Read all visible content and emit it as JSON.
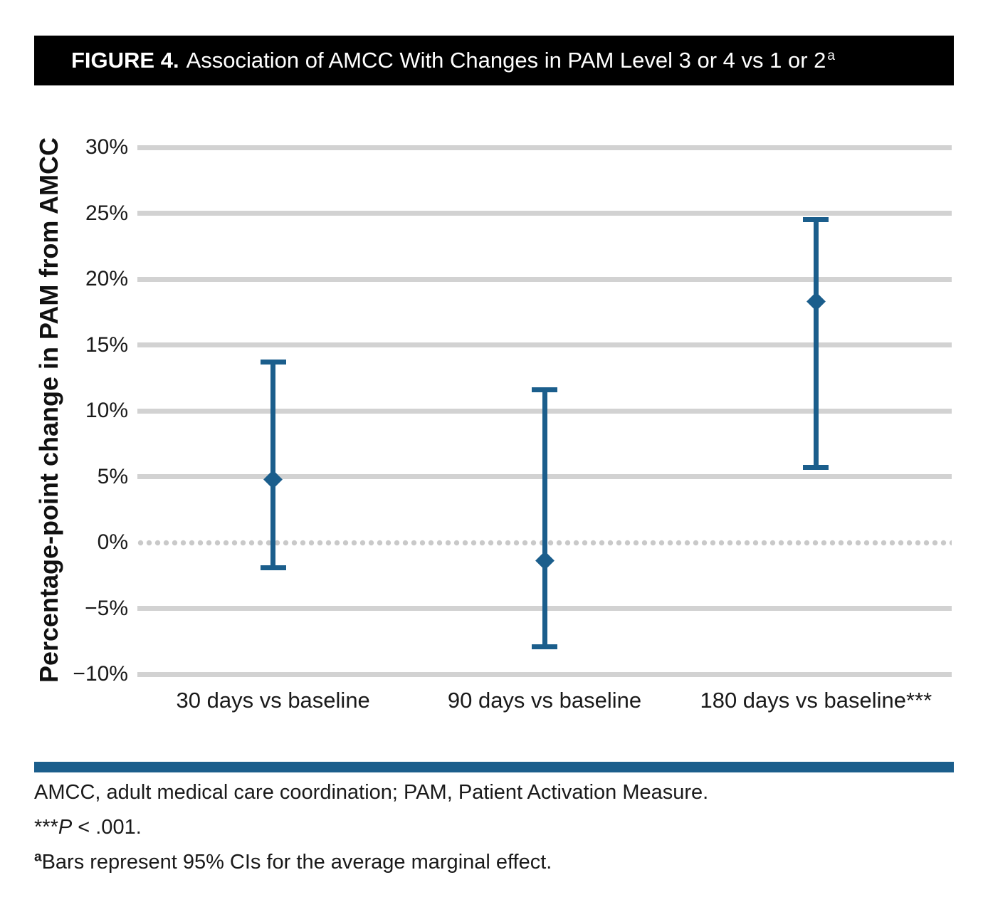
{
  "header": {
    "label": "FIGURE 4.",
    "title": "Association of AMCC With Changes in PAM Level 3 or 4 vs 1 or 2",
    "superscript": "a"
  },
  "chart_data": {
    "type": "scatter",
    "subtype": "point-estimate-with-error-bars",
    "title": "Association of AMCC With Changes in PAM Level 3 or 4 vs 1 or 2",
    "xlabel": "",
    "ylabel": "Percentage-point change in PAM from AMCC",
    "ylim": [
      -10,
      30
    ],
    "ytick_values": [
      30,
      25,
      20,
      15,
      10,
      5,
      0,
      -5,
      -10
    ],
    "ytick_labels": [
      "30%",
      "25%",
      "20%",
      "15%",
      "10%",
      "5%",
      "0%",
      "−5%",
      "−10%"
    ],
    "grid": true,
    "zero_line": "dotted",
    "legend": "none",
    "marker": "diamond",
    "categories": [
      "30 days vs baseline",
      "90 days vs baseline",
      "180 days vs baseline***"
    ],
    "series": [
      {
        "name": "Average marginal effect (95% CI)",
        "points": [
          {
            "category": "30 days vs baseline",
            "estimate": 4.8,
            "ci_low": -1.9,
            "ci_high": 13.7
          },
          {
            "category": "90 days vs baseline",
            "estimate": -1.4,
            "ci_low": -7.9,
            "ci_high": 11.6
          },
          {
            "category": "180 days vs baseline***",
            "estimate": 18.3,
            "ci_low": 5.7,
            "ci_high": 24.5
          }
        ]
      }
    ],
    "colors": {
      "point": "#1b5e8c",
      "gridline": "#d2d2d2",
      "zero_dots": "#c9c9c9"
    }
  },
  "footnotes": {
    "abbreviations": "AMCC, adult medical care coordination; PAM, Patient Activation Measure.",
    "sig_stars": "***",
    "sig_p": "P",
    "sig_rest": " < .001.",
    "bars_sup": "a",
    "bars_text": "Bars represent 95% CIs for the average marginal effect."
  },
  "colors": {
    "header_bg": "#000000",
    "header_text": "#ffffff",
    "divider": "#1b5e8c"
  }
}
